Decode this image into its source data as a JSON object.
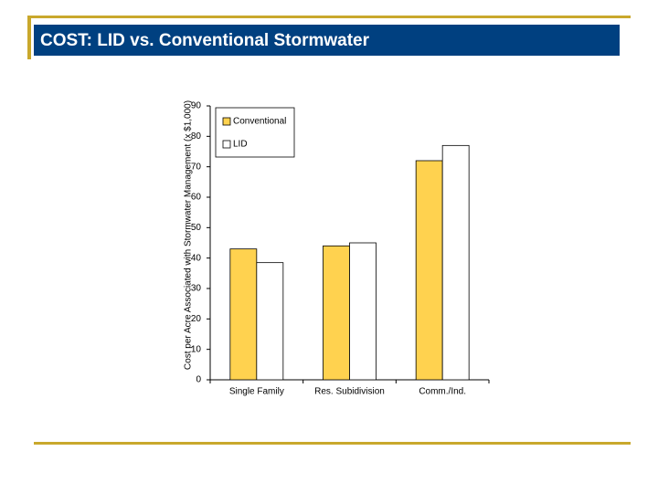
{
  "chart_data": {
    "type": "bar",
    "title": "COST: LID vs. Conventional Stormwater",
    "ylabel": "Cost per Acre Associated with Stormwater Management (x $1,000)",
    "categories": [
      "Single Family",
      "Res. Subidivision",
      "Comm./Ind."
    ],
    "series": [
      {
        "name": "Conventional",
        "color": "#ffd24f",
        "values": [
          43,
          44,
          72
        ]
      },
      {
        "name": "LID",
        "color": "#ffffff",
        "values": [
          38.5,
          45,
          77
        ]
      }
    ],
    "ylim": [
      0,
      90
    ],
    "yticks": [
      0,
      10,
      20,
      30,
      40,
      50,
      60,
      70,
      80,
      90
    ],
    "grid": false,
    "legend": "top-left"
  }
}
